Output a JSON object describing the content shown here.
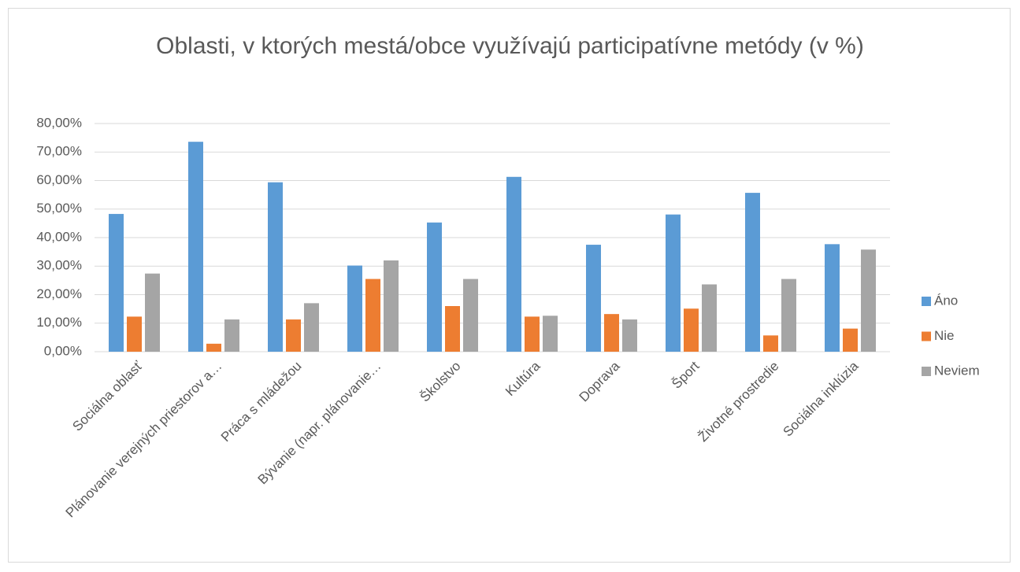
{
  "chart_data": {
    "type": "bar",
    "title": "Oblasti, v ktorých mestá/obce využívajú participatívne metódy (v %)",
    "categories": [
      "Sociálna oblasť",
      "Plánovanie verejných priestorov a…",
      "Práca s mládežou",
      "Bývanie (napr. plánovanie…",
      "Školstvo",
      "Kultúra",
      "Doprava",
      "Šport",
      "Životné prostredie",
      "Sociálna inklúzia"
    ],
    "series": [
      {
        "name": "Áno",
        "color": "#5b9bd5",
        "values": [
          48.3,
          73.6,
          59.4,
          30.2,
          45.3,
          61.3,
          37.5,
          48.1,
          55.7,
          37.7
        ]
      },
      {
        "name": "Nie",
        "color": "#ed7d31",
        "values": [
          12.3,
          2.8,
          11.3,
          25.5,
          16.0,
          12.3,
          13.2,
          15.1,
          5.7,
          8.1
        ]
      },
      {
        "name": "Neviem",
        "color": "#a5a5a5",
        "values": [
          27.4,
          11.3,
          17.0,
          32.0,
          25.5,
          12.6,
          11.3,
          23.6,
          25.5,
          35.8
        ]
      }
    ],
    "ylim": [
      0,
      80
    ],
    "yticks": [
      {
        "value": 0,
        "label": "0,00%"
      },
      {
        "value": 10,
        "label": "10,00%"
      },
      {
        "value": 20,
        "label": "20,00%"
      },
      {
        "value": 30,
        "label": "30,00%"
      },
      {
        "value": 40,
        "label": "40,00%"
      },
      {
        "value": 50,
        "label": "50,00%"
      },
      {
        "value": 60,
        "label": "60,00%"
      },
      {
        "value": 70,
        "label": "70,00%"
      },
      {
        "value": 80,
        "label": "80,00%"
      }
    ],
    "grid": true,
    "legend": "right"
  }
}
